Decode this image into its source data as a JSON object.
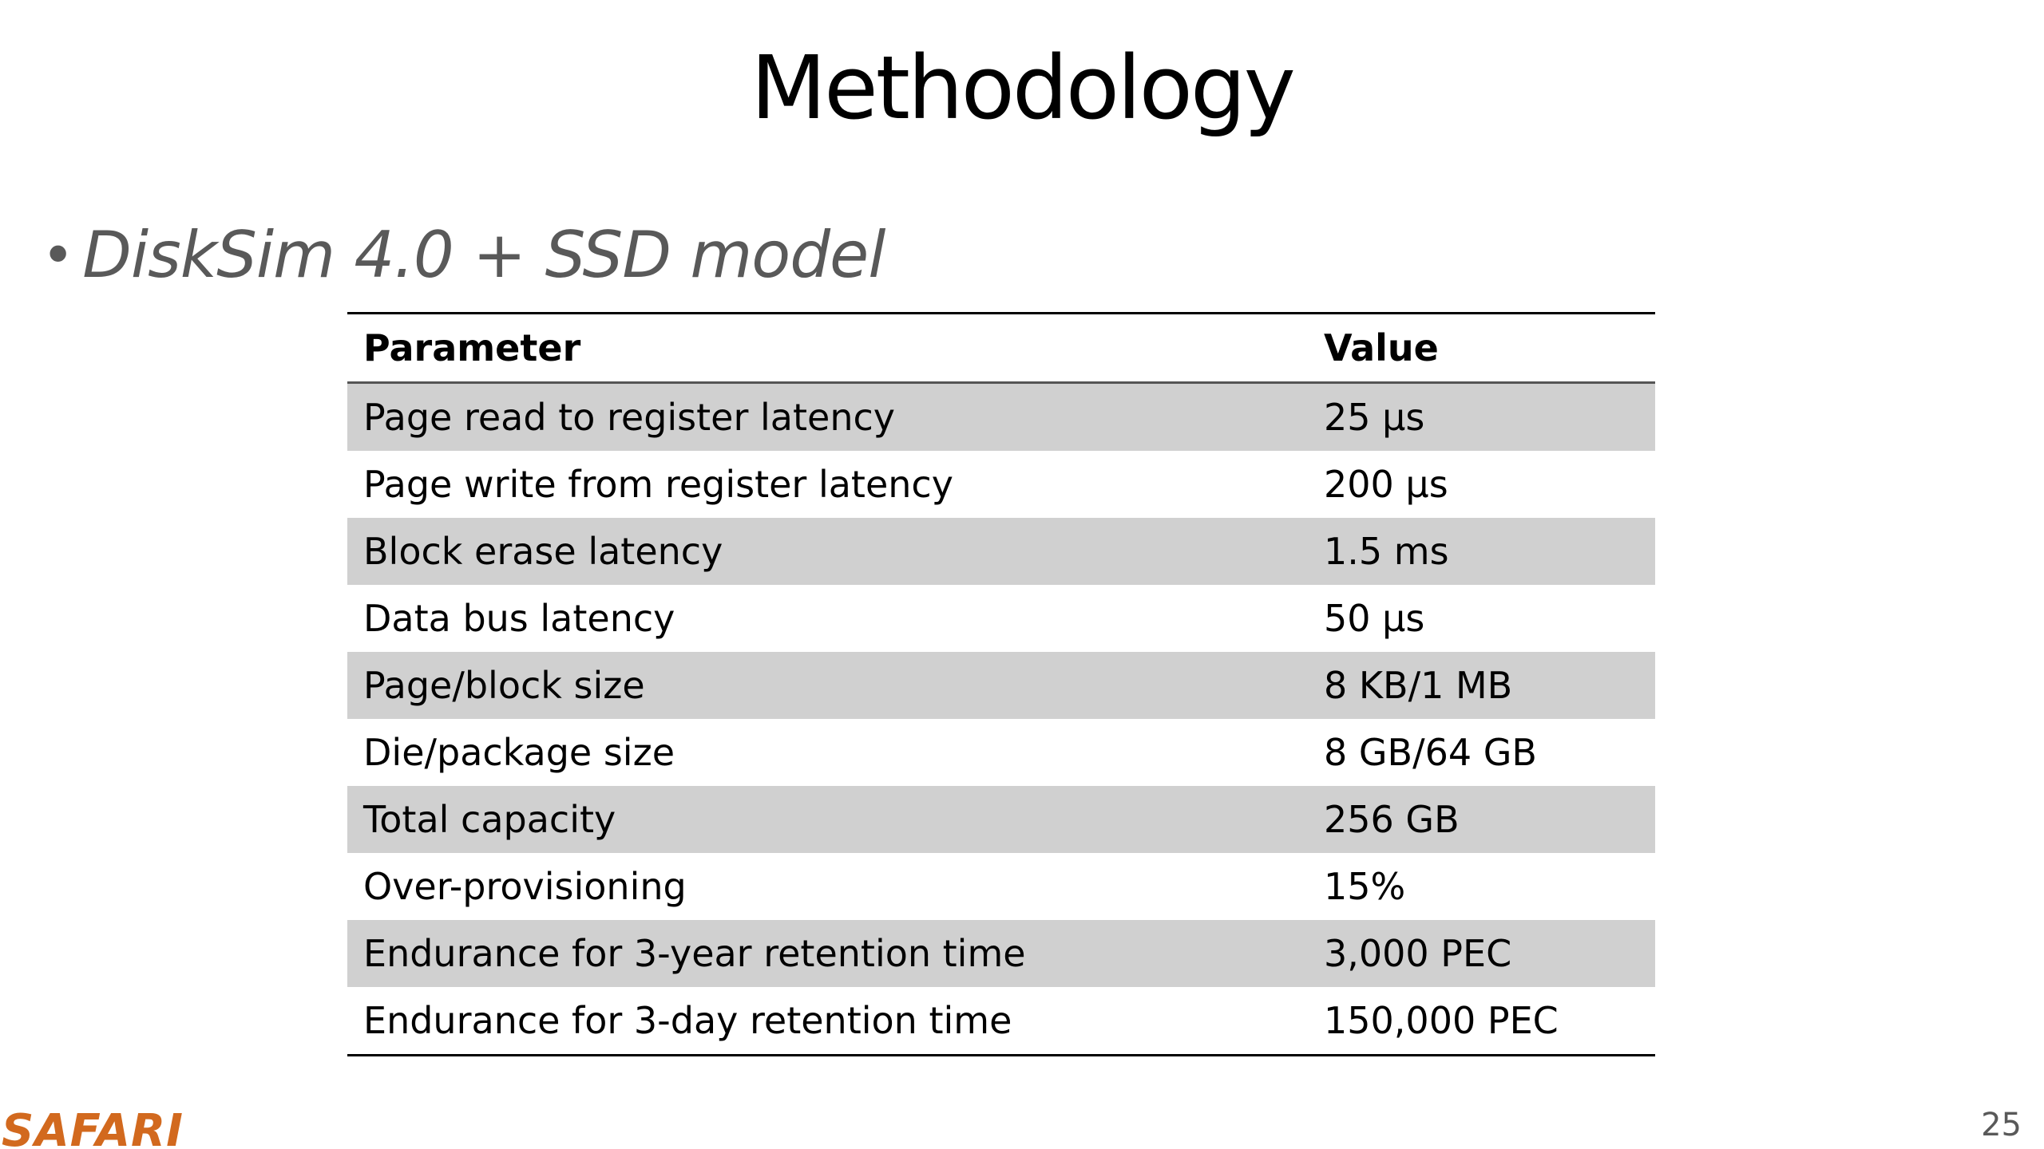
{
  "slide": {
    "title": "Methodology",
    "bullet": "DiskSim 4.0 + SSD model",
    "table": {
      "headers": [
        "Parameter",
        "Value"
      ],
      "rows": [
        {
          "parameter": "Page read to register latency",
          "value": "25 µs"
        },
        {
          "parameter": "Page write from register latency",
          "value": "200 µs"
        },
        {
          "parameter": "Block erase latency",
          "value": "1.5 ms"
        },
        {
          "parameter": "Data bus latency",
          "value": "50 µs"
        },
        {
          "parameter": "Page/block size",
          "value": "8 KB/1 MB"
        },
        {
          "parameter": "Die/package size",
          "value": "8 GB/64 GB"
        },
        {
          "parameter": "Total capacity",
          "value": "256 GB"
        },
        {
          "parameter": "Over-provisioning",
          "value": "15%"
        },
        {
          "parameter": "Endurance for 3-year retention time",
          "value": "3,000 PEC"
        },
        {
          "parameter": "Endurance for 3-day retention time",
          "value": "150,000 PEC"
        }
      ]
    },
    "footer": {
      "logo_text": "SAFARI",
      "page_number": "25"
    },
    "colors": {
      "logo": "#d2691e",
      "row_shade": "#d0d0d0",
      "bullet_text": "#595959"
    }
  }
}
